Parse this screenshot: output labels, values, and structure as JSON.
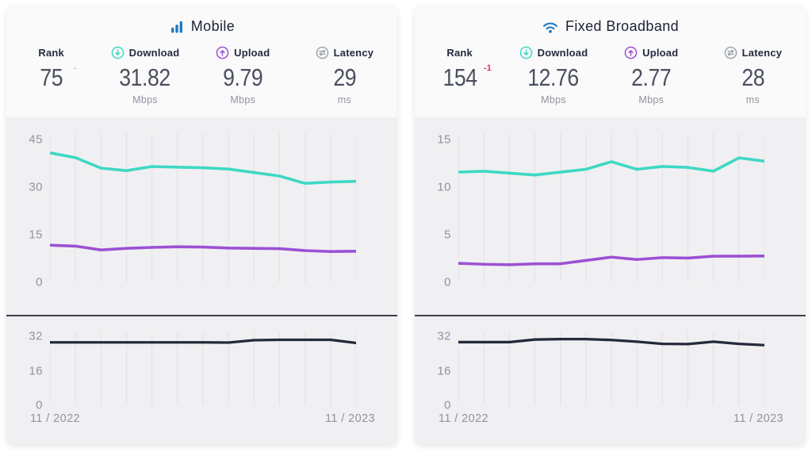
{
  "colors": {
    "accent_blue": "#1f7ac0",
    "download_teal": "#3fd8c4",
    "upload_purple": "#9c51d4",
    "latency_navy": "#242a3a",
    "rank_delta_negative": "#d63864",
    "rank_delta_neutral": "#b9bcc4",
    "chart_background": "#f0f0f2",
    "gridline": "#e3e3e7"
  },
  "cards": [
    {
      "title": "Mobile",
      "icon": "mobile-signal-bars-icon",
      "stats": {
        "rank": {
          "label": "Rank",
          "value": "75",
          "delta": "-"
        },
        "download": {
          "label": "Download",
          "value": "31.82",
          "unit": "Mbps"
        },
        "upload": {
          "label": "Upload",
          "value": "9.79",
          "unit": "Mbps"
        },
        "latency": {
          "label": "Latency",
          "value": "29",
          "unit": "ms"
        }
      }
    },
    {
      "title": "Fixed Broadband",
      "icon": "wifi-icon",
      "stats": {
        "rank": {
          "label": "Rank",
          "value": "154",
          "delta": "-1"
        },
        "download": {
          "label": "Download",
          "value": "12.76",
          "unit": "Mbps"
        },
        "upload": {
          "label": "Upload",
          "value": "2.77",
          "unit": "Mbps"
        },
        "latency": {
          "label": "Latency",
          "value": "28",
          "unit": "ms"
        }
      }
    }
  ],
  "chart_data": [
    {
      "id": "mobile-speeds",
      "type": "line",
      "x_start_label": "11 / 2022",
      "x_end_label": "11 / 2023",
      "n_points": 13,
      "grid": "vertical-monthly",
      "yticks": [
        45,
        30,
        15,
        0
      ],
      "y_view_max": 47,
      "ylim": [
        0,
        45
      ],
      "series": [
        {
          "name": "Download (Mbps)",
          "color": "#3fd8c4",
          "values": [
            40.8,
            39.3,
            36.0,
            35.2,
            36.5,
            36.3,
            36.1,
            35.7,
            34.6,
            33.5,
            31.2,
            31.6,
            31.82
          ]
        },
        {
          "name": "Upload (Mbps)",
          "color": "#9c51d4",
          "values": [
            11.7,
            11.4,
            10.2,
            10.7,
            11.0,
            11.2,
            11.1,
            10.8,
            10.7,
            10.6,
            10.0,
            9.7,
            9.79
          ]
        }
      ]
    },
    {
      "id": "mobile-latency",
      "type": "line",
      "x_start_label": "11 / 2022",
      "x_end_label": "11 / 2023",
      "n_points": 13,
      "grid": "vertical-monthly",
      "yticks": [
        32,
        16,
        0
      ],
      "y_view_max": 34,
      "ylim": [
        0,
        32
      ],
      "series": [
        {
          "name": "Latency (ms)",
          "color": "#242a3a",
          "values": [
            29.3,
            29.3,
            29.3,
            29.3,
            29.3,
            29.3,
            29.3,
            29.2,
            30.3,
            30.5,
            30.5,
            30.5,
            29.0
          ]
        }
      ]
    },
    {
      "id": "fixed-speeds",
      "type": "line",
      "x_start_label": "11 / 2022",
      "x_end_label": "11 / 2023",
      "n_points": 13,
      "grid": "vertical-monthly",
      "yticks": [
        15,
        10,
        5,
        0
      ],
      "y_view_max": 15.7,
      "ylim": [
        0,
        15
      ],
      "series": [
        {
          "name": "Download (Mbps)",
          "color": "#3fd8c4",
          "values": [
            11.6,
            11.7,
            11.5,
            11.3,
            11.6,
            11.9,
            12.7,
            11.9,
            12.2,
            12.1,
            11.7,
            13.1,
            12.76
          ]
        },
        {
          "name": "Upload (Mbps)",
          "color": "#9c51d4",
          "values": [
            2.0,
            1.9,
            1.85,
            1.95,
            1.95,
            2.3,
            2.65,
            2.4,
            2.6,
            2.55,
            2.75,
            2.75,
            2.77
          ]
        }
      ]
    },
    {
      "id": "fixed-latency",
      "type": "line",
      "x_start_label": "11 / 2022",
      "x_end_label": "11 / 2023",
      "n_points": 13,
      "grid": "vertical-monthly",
      "yticks": [
        32,
        16,
        0
      ],
      "y_view_max": 34,
      "ylim": [
        0,
        32
      ],
      "series": [
        {
          "name": "Latency (ms)",
          "color": "#242a3a",
          "values": [
            29.4,
            29.4,
            29.4,
            30.6,
            30.8,
            30.8,
            30.4,
            29.6,
            28.6,
            28.5,
            29.6,
            28.6,
            28.0
          ]
        }
      ]
    }
  ]
}
